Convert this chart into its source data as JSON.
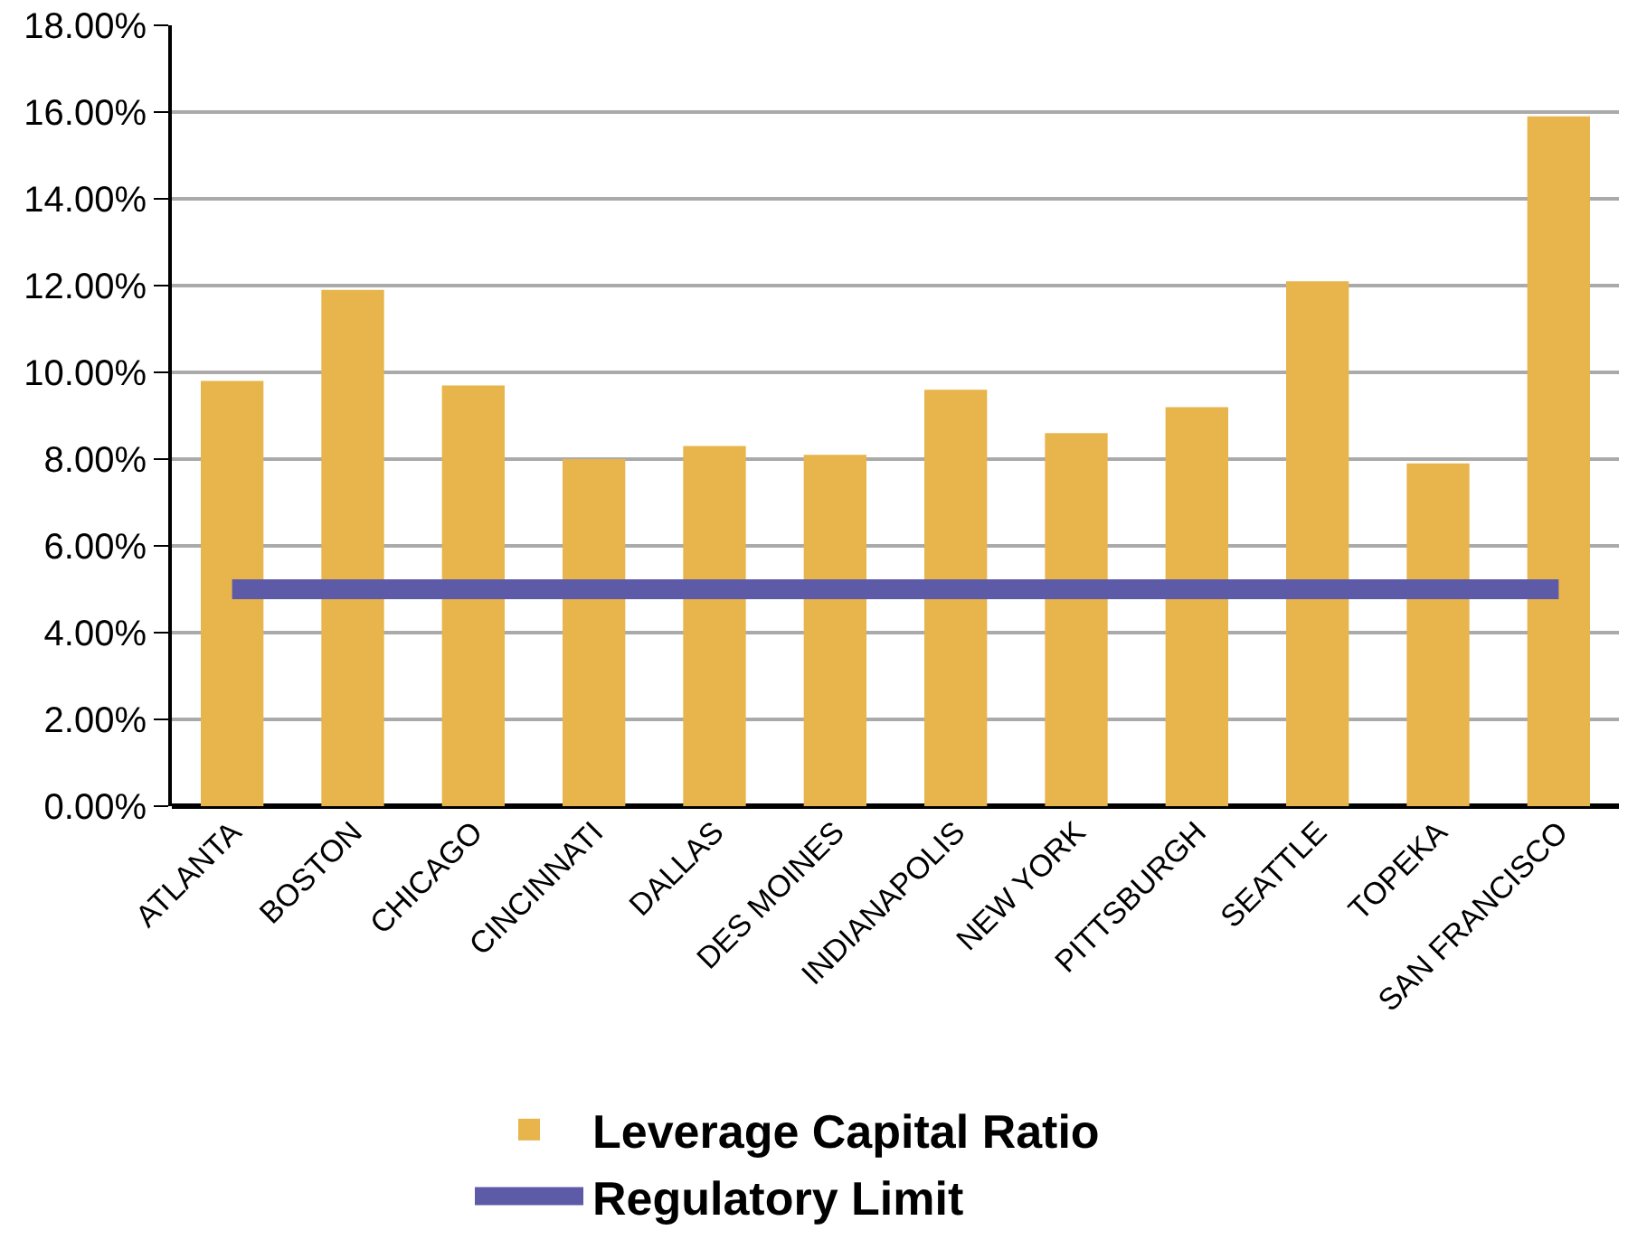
{
  "chart_data": {
    "type": "bar",
    "categories": [
      "ATLANTA",
      "BOSTON",
      "CHICAGO",
      "CINCINNATI",
      "DALLAS",
      "DES MOINES",
      "INDIANAPOLIS",
      "NEW YORK",
      "PITTSBURGH",
      "SEATTLE",
      "TOPEKA",
      "SAN FRANCISCO"
    ],
    "series": [
      {
        "name": "Leverage Capital Ratio",
        "color": "#e8b44c",
        "values": [
          9.8,
          11.9,
          9.7,
          8.0,
          8.3,
          8.1,
          9.6,
          8.6,
          9.2,
          12.1,
          7.9,
          15.9
        ]
      },
      {
        "name": "Regulatory Limit",
        "type": "line",
        "color": "#5d5ba8",
        "values": [
          5,
          5,
          5,
          5,
          5,
          5,
          5,
          5,
          5,
          5,
          5,
          5
        ]
      }
    ],
    "ylim": [
      0,
      18
    ],
    "yticks": [
      {
        "value": 0,
        "label": "0.00%"
      },
      {
        "value": 2,
        "label": "2.00%"
      },
      {
        "value": 4,
        "label": "4.00%"
      },
      {
        "value": 6,
        "label": "6.00%"
      },
      {
        "value": 8,
        "label": "8.00%"
      },
      {
        "value": 10,
        "label": "10.00%"
      },
      {
        "value": 12,
        "label": "12.00%"
      },
      {
        "value": 14,
        "label": "14.00%"
      },
      {
        "value": 16,
        "label": "16.00%"
      },
      {
        "value": 18,
        "label": "18.00%"
      }
    ],
    "grid": "y",
    "legend": "bottom",
    "marker": "none"
  }
}
